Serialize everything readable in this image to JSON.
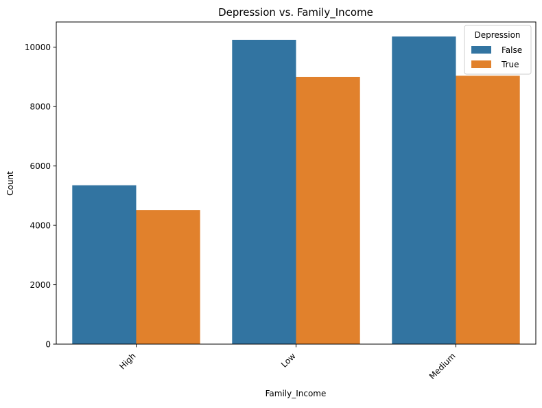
{
  "chart_data": {
    "type": "bar",
    "title": "Depression vs. Family_Income",
    "xlabel": "Family_Income",
    "ylabel": "Count",
    "categories": [
      "High",
      "Low",
      "Medium"
    ],
    "series": [
      {
        "name": "False",
        "values": [
          5350,
          10250,
          10360
        ],
        "color": "#3274a1"
      },
      {
        "name": "True",
        "values": [
          4510,
          9000,
          9040
        ],
        "color": "#e1812c"
      }
    ],
    "ylim": [
      0,
      10850
    ],
    "yticks": [
      0,
      2000,
      4000,
      6000,
      8000,
      10000
    ],
    "grid": false,
    "legend": {
      "title": "Depression",
      "placement": "top-right"
    }
  }
}
